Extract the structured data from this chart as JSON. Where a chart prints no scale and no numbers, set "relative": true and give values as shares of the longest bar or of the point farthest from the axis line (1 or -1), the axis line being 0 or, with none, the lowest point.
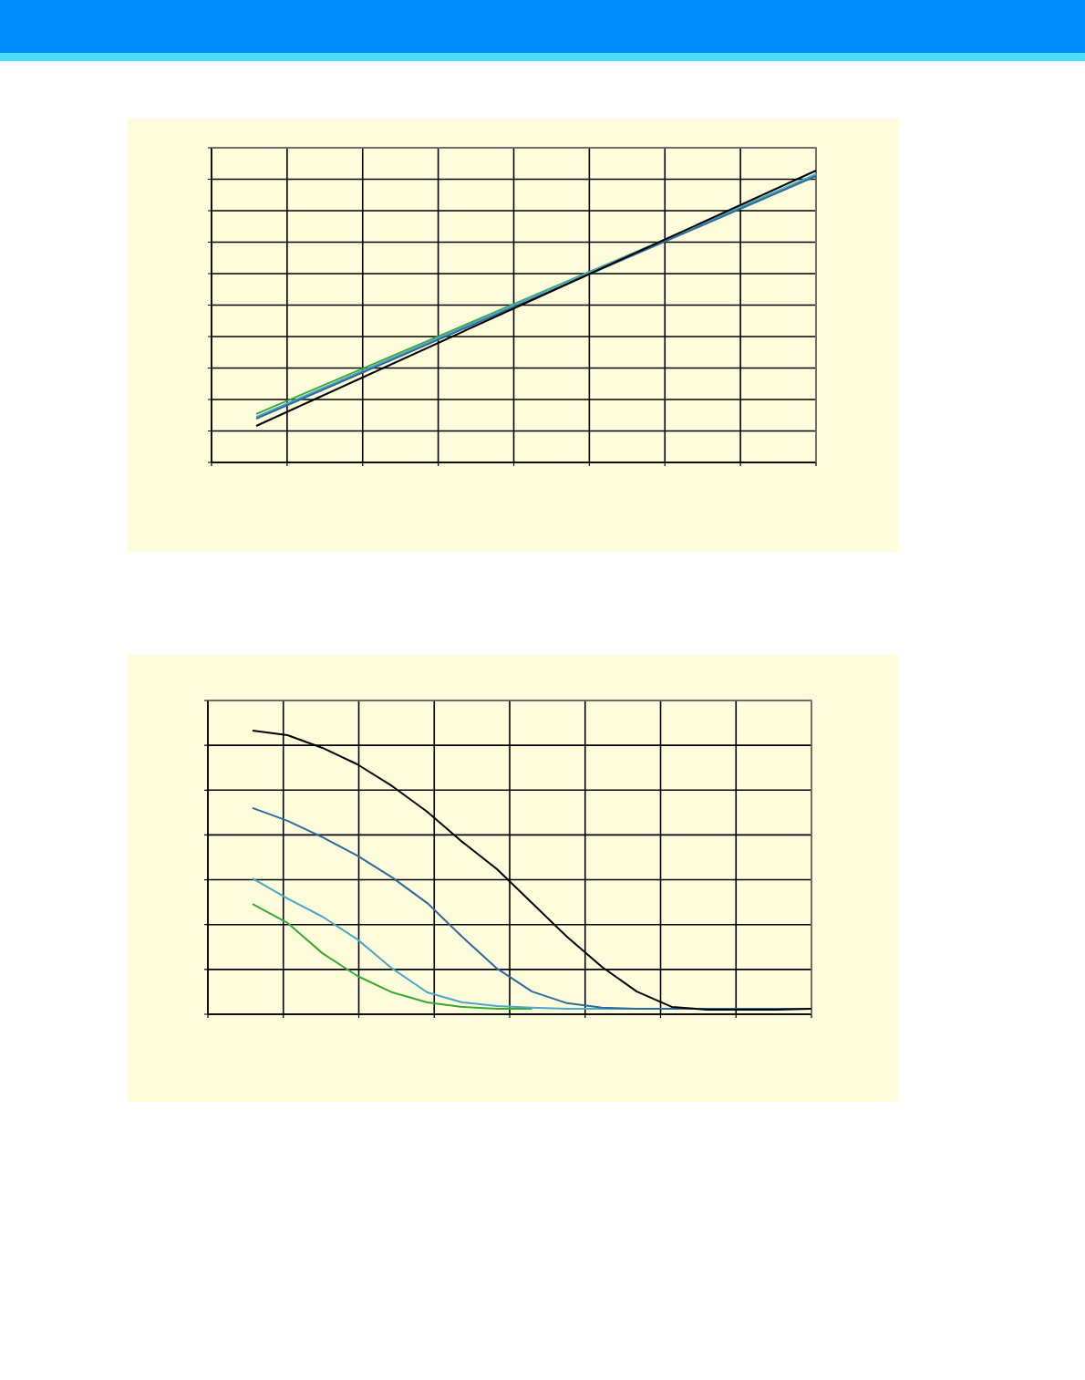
{
  "chart_data": [
    {
      "type": "line",
      "relative": true,
      "grid": true,
      "categories": [
        null,
        null,
        null
      ],
      "series": [
        {
          "color": "#3aaa35",
          "values": [
            0.166,
            0.575,
            0.984
          ]
        },
        {
          "color": "#4aa8c8",
          "values": [
            0.156,
            0.572,
            0.988
          ]
        },
        {
          "color": "#2e6a9e",
          "values": [
            0.15,
            0.566,
            0.981
          ]
        },
        {
          "color": "#000000",
          "values": [
            0.125,
            0.5625,
            1.0
          ]
        }
      ]
    },
    {
      "type": "line",
      "relative": true,
      "grid": true,
      "categories": [
        null,
        null,
        null,
        null,
        null,
        null,
        null,
        null,
        null,
        null,
        null,
        null,
        null,
        null,
        null,
        null,
        null
      ],
      "series": [
        {
          "color": "#3aaa35",
          "values": [
            0.389,
            0.322,
            0.215,
            0.135,
            0.077,
            0.042,
            0.026,
            0.019,
            0.019,
            null,
            null,
            null,
            null,
            null,
            null,
            null,
            null
          ]
        },
        {
          "color": "#4aa8c8",
          "values": [
            0.479,
            0.408,
            0.344,
            0.264,
            0.161,
            0.077,
            0.042,
            0.029,
            0.023,
            0.019,
            0.019,
            0.019,
            0.019,
            null,
            null,
            null,
            null
          ]
        },
        {
          "color": "#2e6a9e",
          "values": [
            0.727,
            0.682,
            0.624,
            0.559,
            0.482,
            0.392,
            0.273,
            0.161,
            0.08,
            0.039,
            0.023,
            0.019,
            0.019,
            0.019,
            0.019,
            0.019,
            0.019
          ]
        },
        {
          "color": "#000000",
          "values": [
            1.0,
            0.984,
            0.939,
            0.881,
            0.804,
            0.714,
            0.608,
            0.511,
            0.392,
            0.273,
            0.167,
            0.08,
            0.026,
            0.016,
            0.016,
            0.016,
            0.019
          ]
        }
      ]
    }
  ]
}
